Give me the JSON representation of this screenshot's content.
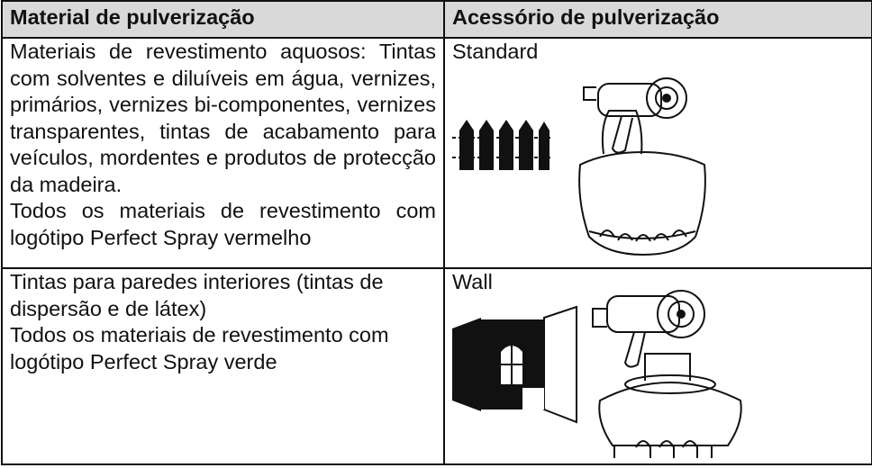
{
  "table": {
    "header": [
      "Material de pulverização",
      "Acessório de pulverização"
    ],
    "rows": [
      {
        "material": [
          "Materiais de revestimento aquosos: Tintas com solventes e diluíveis em água, vernizes, primários, vernizes bi-componentes, vernizes transparentes, tintas de acabamento para veículos, mordentes e produtos de protecção da madeira.",
          "Todos os materiais de revestimento com logótipo Perfect Spray vermelho"
        ],
        "accessory": "Standard"
      },
      {
        "material": [
          "Tintas para paredes interiores (tintas de dispersão e de látex)",
          "Todos os materiais de revestimento com logótipo Perfect Spray verde"
        ],
        "accessory": "Wall"
      }
    ]
  }
}
